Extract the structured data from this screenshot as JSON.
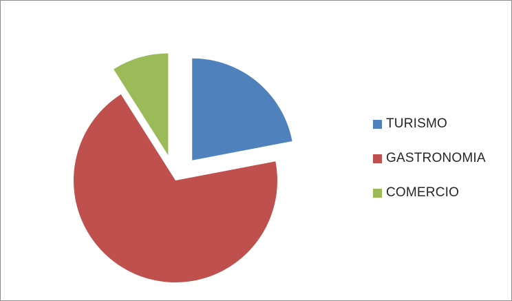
{
  "chart_data": {
    "type": "pie",
    "exploded": true,
    "title": "",
    "categories": [
      "TURISMO",
      "GASTRONOMIA",
      "COMERCIO"
    ],
    "values": [
      22,
      69,
      9
    ],
    "colors": [
      "#4f81bd",
      "#c0504d",
      "#9bbb59"
    ],
    "legend_position": "right"
  },
  "legend": {
    "items": [
      {
        "label": "TURISMO",
        "color": "#4f81bd"
      },
      {
        "label": "GASTRONOMIA",
        "color": "#c0504d"
      },
      {
        "label": "COMERCIO",
        "color": "#9bbb59"
      }
    ]
  }
}
